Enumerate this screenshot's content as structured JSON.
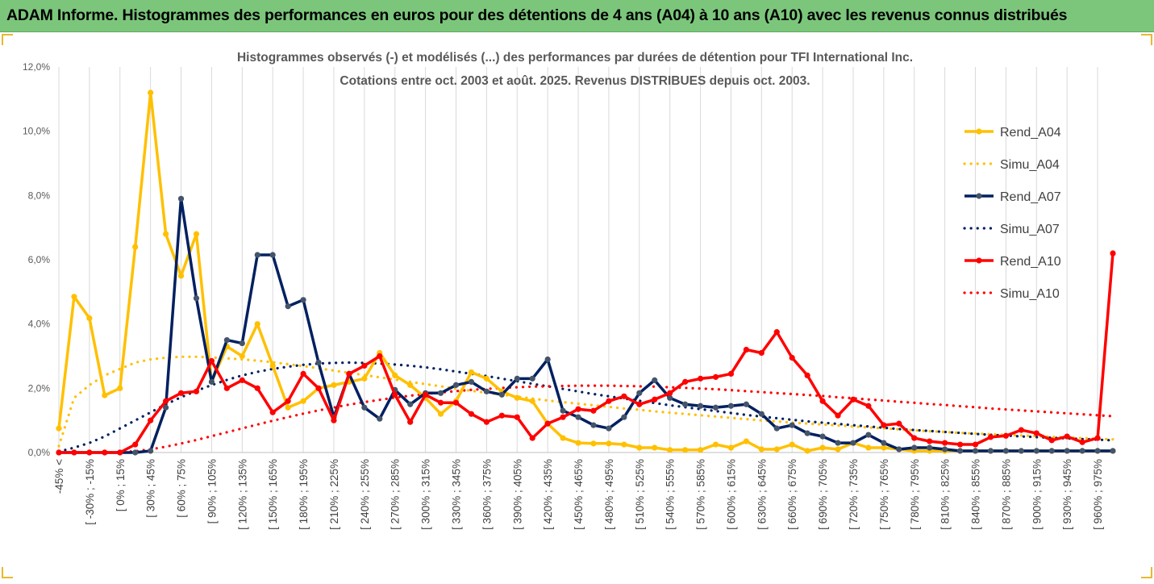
{
  "banner": {
    "title": "ADAM Informe. Histogrammes des performances en euros pour des détentions de 4 ans (A04) à 10 ans (A10) avec les revenus connus distribués"
  },
  "colors": {
    "A04": "#ffc000",
    "A07": "#002060",
    "A10": "#ff0000",
    "banner_bg": "#7bc67b"
  },
  "chart_data": {
    "type": "line",
    "title": "Histogrammes observés (-) et modélisés (...) des performances par durées de détention pour TFI International Inc.",
    "subtitle": "Cotations entre oct. 2003 et août. 2025.  Revenus DISTRIBUES depuis oct. 2003.",
    "ylim": [
      0,
      0.12
    ],
    "yticks": [
      0,
      0.02,
      0.04,
      0.06,
      0.08,
      0.1,
      0.12
    ],
    "ytick_labels": [
      "0,0%",
      "2,0%",
      "4,0%",
      "6,0%",
      "8,0%",
      "10,0%",
      "12,0%"
    ],
    "grid": "vertical",
    "legend_position": "right",
    "x_labels": [
      "-45% <",
      "[ -30% ; -15%",
      "[ 0% ; 15%",
      "[ 30% ; 45%",
      "[ 60% ; 75%",
      "[ 90% ; 105%",
      "[ 120% ; 135%",
      "[ 150% ; 165%",
      "[ 180% ; 195%",
      "[ 210% ; 225%",
      "[ 240% ; 255%",
      "[ 270% ; 285%",
      "[ 300% ; 315%",
      "[ 330% ; 345%",
      "[ 360% ; 375%",
      "[ 390% ; 405%",
      "[ 420% ; 435%",
      "[ 450% ; 465%",
      "[ 480% ; 495%",
      "[ 510% ; 525%",
      "[ 540% ; 555%",
      "[ 570% ; 585%",
      "[ 600% ; 615%",
      "[ 630% ; 645%",
      "[ 660% ; 675%",
      "[ 690% ; 705%",
      "[ 720% ; 735%",
      "[ 750% ; 765%",
      "[ 780% ; 795%",
      "[ 810% ; 825%",
      "[ 840% ; 855%",
      "[ 870% ; 885%",
      "[ 900% ; 915%",
      "[ 930% ; 945%",
      "[ 960% ; 975%"
    ],
    "series": [
      {
        "name": "Rend_A04",
        "style": "solid",
        "markers": true,
        "color": "#ffc000",
        "values": [
          0.0075,
          0.0485,
          0.0418,
          0.0178,
          0.02,
          0.064,
          0.112,
          0.068,
          0.055,
          0.068,
          0.022,
          0.033,
          0.03,
          0.04,
          0.027,
          0.014,
          0.016,
          0.02,
          0.021,
          0.022,
          0.023,
          0.031,
          0.024,
          0.021,
          0.017,
          0.012,
          0.016,
          0.025,
          0.023,
          0.019,
          0.017,
          0.016,
          0.009,
          0.0045,
          0.003,
          0.0028,
          0.0028,
          0.0025,
          0.0015,
          0.0015,
          0.0008,
          0.0008,
          0.0008,
          0.0025,
          0.0015,
          0.0035,
          0.001,
          0.001,
          0.0025,
          0.0005,
          0.0015,
          0.001,
          0.003,
          0.0015,
          0.0015,
          0.001,
          0.0005,
          0.0005,
          0.0005,
          0.0005,
          0.0005,
          0.0005,
          0.0005,
          0.0005,
          0.0005,
          0.0005,
          0.0005,
          0.0005,
          0.0005,
          0.0005
        ]
      },
      {
        "name": "Simu_A04",
        "style": "dotted",
        "markers": false,
        "color": "#ffc000",
        "values": [
          0.002,
          0.017,
          0.021,
          0.024,
          0.026,
          0.028,
          0.029,
          0.0295,
          0.0298,
          0.0298,
          0.0296,
          0.0293,
          0.029,
          0.0286,
          0.0281,
          0.0275,
          0.0269,
          0.0262,
          0.0255,
          0.0248,
          0.0241,
          0.0234,
          0.0227,
          0.022,
          0.0213,
          0.0206,
          0.0199,
          0.0192,
          0.0186,
          0.018,
          0.0174,
          0.0168,
          0.0162,
          0.0157,
          0.0152,
          0.0147,
          0.0142,
          0.0137,
          0.0133,
          0.0128,
          0.0124,
          0.012,
          0.0116,
          0.0112,
          0.0108,
          0.0104,
          0.01,
          0.0097,
          0.0093,
          0.009,
          0.0087,
          0.0084,
          0.0081,
          0.0078,
          0.0075,
          0.0072,
          0.0069,
          0.0066,
          0.0064,
          0.0061,
          0.0059,
          0.0057,
          0.0055,
          0.0053,
          0.0051,
          0.0049,
          0.0047,
          0.0045,
          0.0043,
          0.0041
        ]
      },
      {
        "name": "Rend_A07",
        "style": "solid",
        "markers": true,
        "color": "#002060",
        "values": [
          0,
          0,
          0,
          0,
          0,
          0,
          0.0005,
          0.014,
          0.079,
          0.048,
          0.022,
          0.035,
          0.034,
          0.0615,
          0.0615,
          0.0455,
          0.0475,
          0.028,
          0.011,
          0.0245,
          0.014,
          0.0105,
          0.0195,
          0.015,
          0.0185,
          0.0185,
          0.021,
          0.022,
          0.019,
          0.018,
          0.023,
          0.023,
          0.029,
          0.013,
          0.011,
          0.0085,
          0.0075,
          0.011,
          0.0185,
          0.0225,
          0.017,
          0.015,
          0.0145,
          0.014,
          0.0145,
          0.015,
          0.012,
          0.0075,
          0.0085,
          0.006,
          0.005,
          0.003,
          0.003,
          0.0055,
          0.003,
          0.001,
          0.0015,
          0.0015,
          0.001,
          0.0005,
          0.0005,
          0.0005,
          0.0005,
          0.0005,
          0.0005,
          0.0005,
          0.0005,
          0.0005,
          0.0005,
          0.0005
        ]
      },
      {
        "name": "Simu_A07",
        "style": "dotted",
        "markers": false,
        "color": "#002060",
        "values": [
          0.0003,
          0.0015,
          0.003,
          0.005,
          0.0075,
          0.01,
          0.0125,
          0.015,
          0.0172,
          0.0192,
          0.021,
          0.0226,
          0.024,
          0.0251,
          0.026,
          0.0267,
          0.0273,
          0.0277,
          0.0279,
          0.028,
          0.0279,
          0.0277,
          0.0274,
          0.027,
          0.0265,
          0.0259,
          0.0252,
          0.0245,
          0.0238,
          0.023,
          0.0222,
          0.0214,
          0.0206,
          0.0198,
          0.019,
          0.0182,
          0.0175,
          0.0168,
          0.0161,
          0.0154,
          0.0147,
          0.0141,
          0.0135,
          0.0129,
          0.0123,
          0.0117,
          0.0112,
          0.0107,
          0.0102,
          0.0097,
          0.0093,
          0.0089,
          0.0085,
          0.0081,
          0.0077,
          0.0073,
          0.007,
          0.0067,
          0.0064,
          0.0061,
          0.0058,
          0.0055,
          0.0053,
          0.005,
          0.0048,
          0.0046,
          0.0044,
          0.0042,
          0.004,
          0.0038
        ]
      },
      {
        "name": "Rend_A10",
        "style": "solid",
        "markers": true,
        "color": "#ff0000",
        "values": [
          0,
          0,
          0,
          0,
          0,
          0.0025,
          0.01,
          0.016,
          0.0185,
          0.019,
          0.0285,
          0.02,
          0.0225,
          0.02,
          0.0125,
          0.016,
          0.0245,
          0.02,
          0.01,
          0.0245,
          0.027,
          0.03,
          0.018,
          0.0095,
          0.018,
          0.0155,
          0.0155,
          0.012,
          0.0095,
          0.0115,
          0.011,
          0.0045,
          0.009,
          0.011,
          0.0135,
          0.013,
          0.016,
          0.0175,
          0.015,
          0.0165,
          0.0185,
          0.022,
          0.023,
          0.0235,
          0.0245,
          0.032,
          0.031,
          0.0375,
          0.0295,
          0.024,
          0.016,
          0.0115,
          0.0165,
          0.0145,
          0.0085,
          0.009,
          0.0045,
          0.0035,
          0.003,
          0.0025,
          0.0025,
          0.0048,
          0.0052,
          0.007,
          0.006,
          0.0038,
          0.005,
          0.0032,
          0.0045,
          0.062
        ]
      },
      {
        "name": "Simu_A10",
        "style": "dotted",
        "markers": false,
        "color": "#ff0000",
        "values": [
          0,
          0,
          0,
          0,
          0.0001,
          0.0004,
          0.001,
          0.0018,
          0.0028,
          0.0039,
          0.0051,
          0.0063,
          0.0075,
          0.0087,
          0.0099,
          0.011,
          0.0121,
          0.0131,
          0.014,
          0.0149,
          0.0157,
          0.0164,
          0.0171,
          0.0177,
          0.0182,
          0.0187,
          0.0191,
          0.0195,
          0.0198,
          0.0201,
          0.0203,
          0.0205,
          0.0206,
          0.0207,
          0.0208,
          0.0208,
          0.0208,
          0.0207,
          0.0206,
          0.0205,
          0.0203,
          0.0201,
          0.0199,
          0.0197,
          0.0194,
          0.0191,
          0.0188,
          0.0185,
          0.0182,
          0.0179,
          0.0176,
          0.0172,
          0.0169,
          0.0165,
          0.0162,
          0.0158,
          0.0155,
          0.0151,
          0.0148,
          0.0144,
          0.0141,
          0.0137,
          0.0134,
          0.0131,
          0.0128,
          0.0125,
          0.0122,
          0.0119,
          0.0116,
          0.0113
        ]
      }
    ]
  }
}
